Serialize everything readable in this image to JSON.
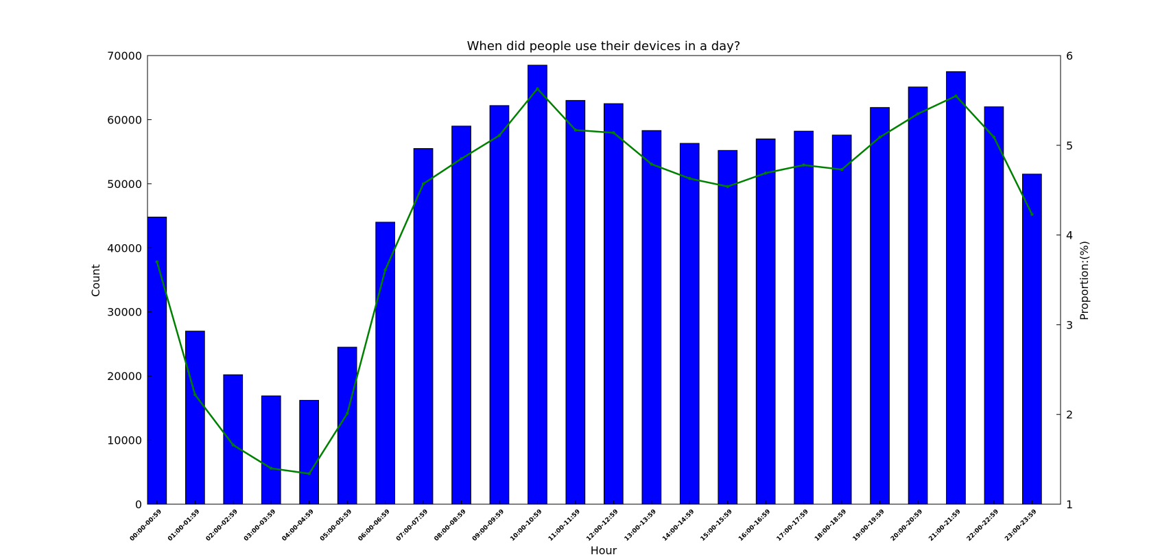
{
  "chart_data": {
    "type": "bar",
    "title": "When did people use their devices in a day?",
    "xlabel": "Hour",
    "ylabel": "Count",
    "y2label": "Proportion:(%)",
    "ylim": [
      0,
      70000
    ],
    "y2lim": [
      1,
      6
    ],
    "yticks": [
      0,
      10000,
      20000,
      30000,
      40000,
      50000,
      60000,
      70000
    ],
    "y2ticks": [
      1,
      2,
      3,
      4,
      5,
      6
    ],
    "grid": false,
    "categories": [
      "00:00-00:59",
      "01:00-01:59",
      "02:00-02:59",
      "03:00-03:59",
      "04:00-04:59",
      "05:00-05:59",
      "06:00-06:59",
      "07:00-07:59",
      "08:00-08:59",
      "09:00-09:59",
      "10:00-10:59",
      "11:00-11:59",
      "12:00-12:59",
      "13:00-13:59",
      "14:00-14:59",
      "15:00-15:59",
      "16:00-16:59",
      "17:00-17:59",
      "18:00-18:59",
      "19:00-19:59",
      "20:00-20:59",
      "21:00-21:59",
      "22:00-22:59",
      "23:00-23:59"
    ],
    "series": [
      {
        "type": "bar",
        "axis": "left",
        "color": "#0000ff",
        "values": [
          44800,
          27000,
          20200,
          16900,
          16200,
          24500,
          44000,
          55500,
          59000,
          62200,
          68500,
          63000,
          62500,
          58300,
          56300,
          55200,
          57000,
          58200,
          57600,
          61900,
          65100,
          67500,
          62000,
          51500
        ]
      },
      {
        "type": "line",
        "axis": "right",
        "color": "#008000",
        "values": [
          3.7,
          2.22,
          1.66,
          1.4,
          1.34,
          2.01,
          3.61,
          4.57,
          4.85,
          5.11,
          5.63,
          5.17,
          5.14,
          4.79,
          4.63,
          4.54,
          4.69,
          4.78,
          4.73,
          5.09,
          5.35,
          5.55,
          5.09,
          4.23
        ]
      }
    ]
  }
}
